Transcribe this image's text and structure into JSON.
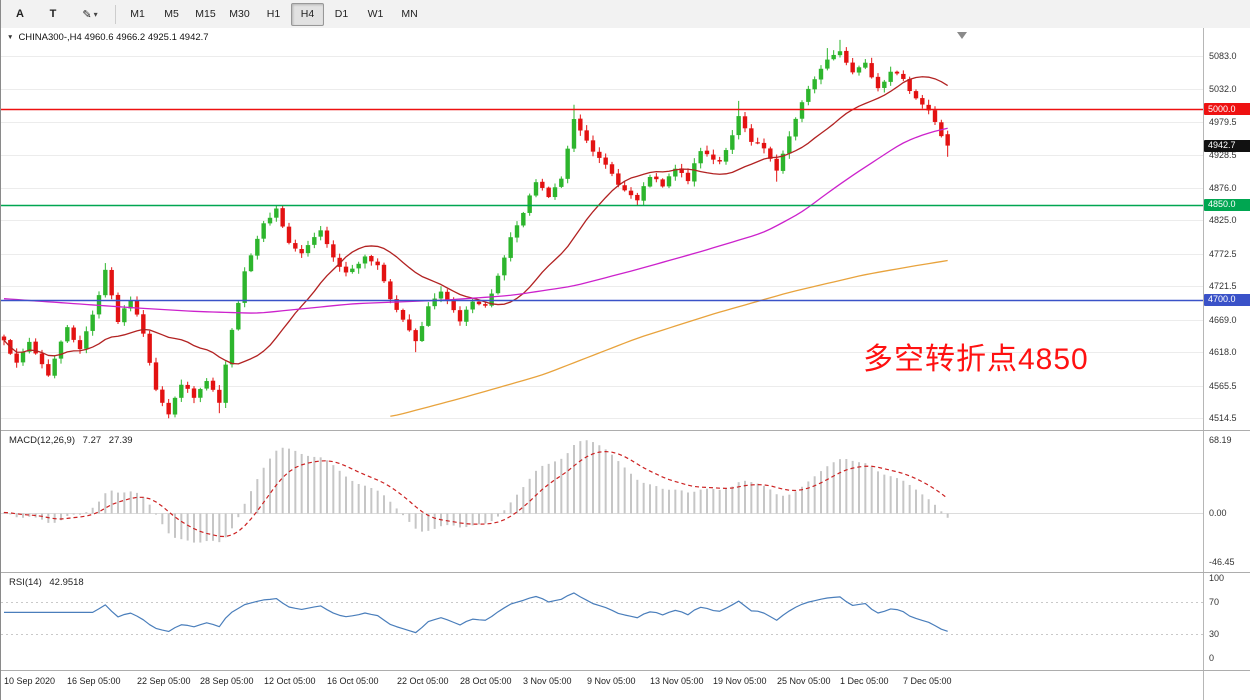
{
  "icons": {
    "symbol_marker": "▼"
  },
  "toolbar": {
    "tool_buttons": [
      {
        "id": "text",
        "label": "A"
      },
      {
        "id": "text-cursor",
        "label": "T"
      }
    ],
    "draw_tool": {
      "icon": "pencil-icon",
      "glyph": "✎",
      "caret_icon": "chevron-down-icon",
      "caret_glyph": "▾"
    },
    "timeframes": [
      {
        "label": "M1",
        "active": false
      },
      {
        "label": "M5",
        "active": false
      },
      {
        "label": "M15",
        "active": false
      },
      {
        "label": "M30",
        "active": false
      },
      {
        "label": "H1",
        "active": false
      },
      {
        "label": "H4",
        "active": true
      },
      {
        "label": "D1",
        "active": false
      },
      {
        "label": "W1",
        "active": false
      },
      {
        "label": "MN",
        "active": false
      }
    ]
  },
  "header": {
    "symbol_ohlc": "CHINA300-,H4 4960.6 4966.2 4925.1 4942.7"
  },
  "chart_data": {
    "type": "candlestick",
    "symbol": "CHINA300-",
    "timeframe": "H4",
    "last_candle": {
      "open": 4960.6,
      "high": 4966.2,
      "low": 4925.1,
      "close": 4942.7
    },
    "price_axis": {
      "min": 4505,
      "max": 5115,
      "ticks": [
        5083.0,
        5032.0,
        4979.5,
        4928.5,
        4876.0,
        4825.0,
        4772.5,
        4721.5,
        4669.0,
        4618.0,
        4565.5,
        4514.5
      ]
    },
    "levels": [
      {
        "value": 5000.0,
        "label": "5000.0",
        "color": "#ee1111"
      },
      {
        "value": 4850.0,
        "label": "4850.0",
        "color": "#00a651"
      },
      {
        "value": 4700.0,
        "label": "4700.0",
        "color": "#3a52c8"
      }
    ],
    "current_price": {
      "value": 4942.7,
      "label": "4942.7",
      "color": "#111111"
    },
    "candles": {
      "count": 150,
      "noise_seed": 7,
      "up_color": "#2db52d",
      "down_color": "#e31212",
      "close_anchors": [
        [
          0,
          4638
        ],
        [
          2,
          4600
        ],
        [
          4,
          4634
        ],
        [
          7,
          4582
        ],
        [
          10,
          4658
        ],
        [
          12,
          4622
        ],
        [
          15,
          4708
        ],
        [
          16,
          4748
        ],
        [
          18,
          4666
        ],
        [
          20,
          4700
        ],
        [
          22,
          4648
        ],
        [
          24,
          4560
        ],
        [
          26,
          4520
        ],
        [
          28,
          4568
        ],
        [
          30,
          4546
        ],
        [
          32,
          4572
        ],
        [
          34,
          4538
        ],
        [
          36,
          4652
        ],
        [
          38,
          4746
        ],
        [
          41,
          4822
        ],
        [
          43,
          4843
        ],
        [
          45,
          4790
        ],
        [
          47,
          4772
        ],
        [
          50,
          4810
        ],
        [
          52,
          4768
        ],
        [
          54,
          4742
        ],
        [
          57,
          4768
        ],
        [
          59,
          4756
        ],
        [
          61,
          4700
        ],
        [
          63,
          4668
        ],
        [
          65,
          4634
        ],
        [
          67,
          4690
        ],
        [
          69,
          4712
        ],
        [
          72,
          4666
        ],
        [
          74,
          4696
        ],
        [
          76,
          4690
        ],
        [
          78,
          4738
        ],
        [
          80,
          4798
        ],
        [
          82,
          4836
        ],
        [
          84,
          4885
        ],
        [
          86,
          4862
        ],
        [
          88,
          4890
        ],
        [
          90,
          4985
        ],
        [
          92,
          4952
        ],
        [
          94,
          4922
        ],
        [
          96,
          4898
        ],
        [
          98,
          4872
        ],
        [
          100,
          4856
        ],
        [
          102,
          4894
        ],
        [
          104,
          4878
        ],
        [
          106,
          4906
        ],
        [
          108,
          4888
        ],
        [
          110,
          4934
        ],
        [
          113,
          4918
        ],
        [
          115,
          4958
        ],
        [
          116,
          4988
        ],
        [
          118,
          4948
        ],
        [
          120,
          4938
        ],
        [
          122,
          4902
        ],
        [
          124,
          4958
        ],
        [
          126,
          5010
        ],
        [
          128,
          5048
        ],
        [
          130,
          5078
        ],
        [
          132,
          5092
        ],
        [
          134,
          5058
        ],
        [
          136,
          5074
        ],
        [
          138,
          5034
        ],
        [
          140,
          5060
        ],
        [
          142,
          5046
        ],
        [
          144,
          5018
        ],
        [
          146,
          4998
        ],
        [
          148,
          4958
        ],
        [
          149,
          4942.7
        ]
      ],
      "spike_highs": {
        "16": 4758,
        "43": 4849,
        "90": 5007,
        "116": 5013,
        "130": 5096,
        "132": 5109
      },
      "spike_lows": {
        "26": 4514,
        "34": 4522,
        "65": 4618,
        "100": 4848,
        "122": 4886
      }
    },
    "overlays": {
      "ma_red": {
        "name": "fast moving average",
        "type": "sma",
        "period": 20,
        "color": "#b22222"
      },
      "ma_magenta": {
        "name": "medium moving average",
        "color": "#cc22cc",
        "anchors": [
          [
            0,
            4702
          ],
          [
            20,
            4688
          ],
          [
            30,
            4682
          ],
          [
            40,
            4679
          ],
          [
            55,
            4694
          ],
          [
            70,
            4700
          ],
          [
            80,
            4707
          ],
          [
            90,
            4722
          ],
          [
            100,
            4748
          ],
          [
            110,
            4776
          ],
          [
            120,
            4806
          ],
          [
            126,
            4838
          ],
          [
            130,
            4868
          ],
          [
            134,
            4896
          ],
          [
            138,
            4922
          ],
          [
            142,
            4948
          ],
          [
            146,
            4963
          ],
          [
            149,
            4970
          ]
        ]
      },
      "ma_orange": {
        "name": "slow moving average",
        "color": "#e8a33d",
        "anchors": [
          [
            61,
            4516
          ],
          [
            72,
            4545
          ],
          [
            85,
            4582
          ],
          [
            100,
            4640
          ],
          [
            112,
            4678
          ],
          [
            124,
            4712
          ],
          [
            136,
            4740
          ],
          [
            144,
            4754
          ],
          [
            149,
            4762
          ]
        ]
      }
    },
    "macd": {
      "label": "MACD(12,26,9)",
      "fast": 12,
      "slow": 26,
      "signal_period": 9,
      "main_value": "7.27",
      "signal_value": "27.39",
      "axis": {
        "max": 68.19,
        "min": -46.45,
        "labels": {
          "top": "68.19",
          "zero": "0.00",
          "bottom": "-46.45"
        }
      },
      "histogram_color": "#c6c6c6",
      "signal_color": "#cc2222"
    },
    "rsi": {
      "label": "RSI(14)",
      "period": 14,
      "value": "42.9518",
      "axis_labels": [
        100,
        70,
        30,
        0
      ],
      "levels": [
        70,
        30
      ],
      "color": "#4a7ebb"
    },
    "time_labels": [
      {
        "label": "10 Sep 2020",
        "candle": 0
      },
      {
        "label": "16 Sep 05:00",
        "candle": 10
      },
      {
        "label": "22 Sep 05:00",
        "candle": 21
      },
      {
        "label": "28 Sep 05:00",
        "candle": 31
      },
      {
        "label": "12 Oct 05:00",
        "candle": 41
      },
      {
        "label": "16 Oct 05:00",
        "candle": 51
      },
      {
        "label": "22 Oct 05:00",
        "candle": 62
      },
      {
        "label": "28 Oct 05:00",
        "candle": 72
      },
      {
        "label": "3 Nov 05:00",
        "candle": 82
      },
      {
        "label": "9 Nov 05:00",
        "candle": 92
      },
      {
        "label": "13 Nov 05:00",
        "candle": 102
      },
      {
        "label": "19 Nov 05:00",
        "candle": 112
      },
      {
        "label": "25 Nov 05:00",
        "candle": 122
      },
      {
        "label": "1 Dec 05:00",
        "candle": 132
      },
      {
        "label": "7 Dec 05:00",
        "candle": 142
      }
    ],
    "annotation": {
      "text": "多空转折点4850",
      "color": "#ff1111"
    }
  }
}
